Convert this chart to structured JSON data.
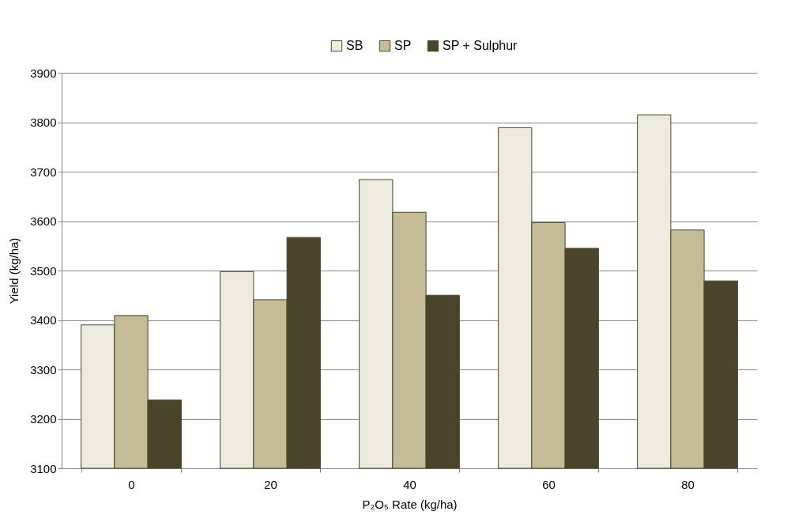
{
  "chart_data": {
    "type": "bar",
    "xlabel": "P₂O₅ Rate (kg/ha)",
    "ylabel": "Yield (kg/ha)",
    "categories": [
      "0",
      "20",
      "40",
      "60",
      "80"
    ],
    "series": [
      {
        "name": "SB",
        "color": "#ecebdf",
        "values": [
          3390,
          3498,
          3684,
          3789,
          3815
        ]
      },
      {
        "name": "SP",
        "color": "#c4bc96",
        "values": [
          3409,
          3441,
          3618,
          3597,
          3582
        ]
      },
      {
        "name": "SP + Sulphur",
        "color": "#4a452a",
        "values": [
          3238,
          3567,
          3450,
          3545,
          3479
        ]
      }
    ],
    "ylim": [
      3100,
      3900
    ],
    "yticks": [
      3100,
      3200,
      3300,
      3400,
      3500,
      3600,
      3700,
      3800,
      3900
    ],
    "grid": "y",
    "legend": "top"
  }
}
